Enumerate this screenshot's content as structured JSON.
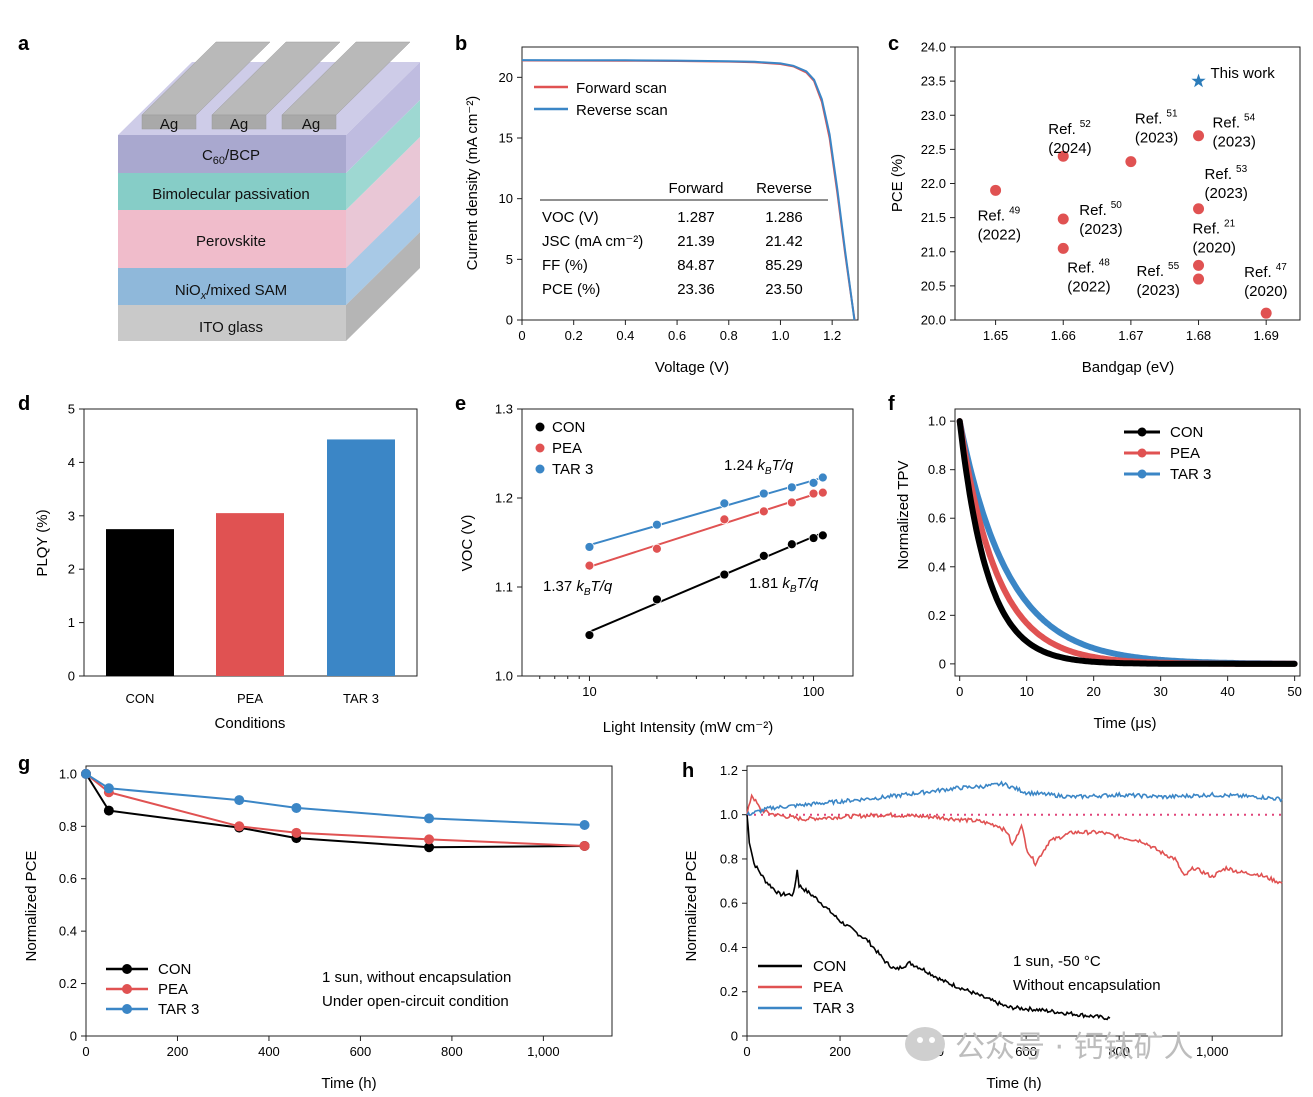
{
  "panels": {
    "a": "a",
    "b": "b",
    "c": "c",
    "d": "d",
    "e": "e",
    "f": "f",
    "g": "g",
    "h": "h"
  },
  "colors": {
    "CON": "#000000",
    "PEA": "#e05252",
    "TAR3": "#3b86c6",
    "star": "#2b7bb9"
  },
  "panel_a": {
    "layers": [
      {
        "label": "Ag"
      },
      {
        "label": "C60/BCP"
      },
      {
        "label": "Bimolecular passivation"
      },
      {
        "label": "Perovskite"
      },
      {
        "label": "NiOx/mixed SAM"
      },
      {
        "label": "ITO glass"
      }
    ],
    "ag_labels": [
      "Ag",
      "Ag",
      "Ag"
    ]
  },
  "watermark": {
    "text": "公众号 · 钙钛矿人"
  },
  "chart_data": [
    {
      "panel": "b",
      "type": "line",
      "xlabel": "Voltage (V)",
      "ylabel": "Current density (mA cm⁻²)",
      "xlim": [
        0,
        1.3
      ],
      "ylim": [
        0,
        22.5
      ],
      "xticks": [
        "0",
        "0.2",
        "0.4",
        "0.6",
        "0.8",
        "1.0",
        "1.2"
      ],
      "yticks": [
        "0",
        "5",
        "10",
        "15",
        "20"
      ],
      "series": [
        {
          "name": "Forward scan",
          "x": [
            0,
            0.2,
            0.4,
            0.6,
            0.8,
            0.9,
            1.0,
            1.05,
            1.1,
            1.13,
            1.16,
            1.19,
            1.22,
            1.25,
            1.27,
            1.287
          ],
          "y": [
            21.39,
            21.38,
            21.37,
            21.35,
            21.3,
            21.25,
            21.1,
            20.9,
            20.4,
            19.7,
            18.0,
            15.0,
            10.5,
            5.5,
            2.5,
            0
          ]
        },
        {
          "name": "Reverse scan",
          "x": [
            0,
            0.2,
            0.4,
            0.6,
            0.8,
            0.9,
            1.0,
            1.05,
            1.1,
            1.13,
            1.16,
            1.19,
            1.22,
            1.25,
            1.27,
            1.286
          ],
          "y": [
            21.42,
            21.41,
            21.4,
            21.38,
            21.33,
            21.28,
            21.15,
            20.95,
            20.5,
            19.8,
            18.2,
            15.3,
            10.8,
            5.7,
            2.6,
            0
          ]
        }
      ],
      "table": {
        "headers": [
          "",
          "Forward",
          "Reverse"
        ],
        "rows": [
          [
            "VOC (V)",
            "1.287",
            "1.286"
          ],
          [
            "JSC (mA cm⁻²)",
            "21.39",
            "21.42"
          ],
          [
            "FF (%)",
            "84.87",
            "85.29"
          ],
          [
            "PCE (%)",
            "23.36",
            "23.50"
          ]
        ]
      }
    },
    {
      "panel": "c",
      "type": "scatter",
      "xlabel": "Bandgap (eV)",
      "ylabel": "PCE (%)",
      "xlim": [
        1.644,
        1.695
      ],
      "ylim": [
        20.0,
        24.0
      ],
      "xticks": [
        "1.65",
        "1.66",
        "1.67",
        "1.68",
        "1.69"
      ],
      "yticks": [
        "20.0",
        "20.5",
        "21.0",
        "21.5",
        "22.0",
        "22.5",
        "23.0",
        "23.5",
        "24.0"
      ],
      "points": [
        {
          "x": 1.65,
          "y": 21.9,
          "ref": "49",
          "year": "(2022)"
        },
        {
          "x": 1.66,
          "y": 22.4,
          "ref": "52",
          "year": "(2024)"
        },
        {
          "x": 1.66,
          "y": 21.48,
          "ref": "50",
          "year": "(2023)"
        },
        {
          "x": 1.66,
          "y": 21.05,
          "ref": "48",
          "year": "(2022)"
        },
        {
          "x": 1.67,
          "y": 22.32,
          "ref": "51",
          "year": "(2023)"
        },
        {
          "x": 1.68,
          "y": 22.7,
          "ref": "54",
          "year": "(2023)"
        },
        {
          "x": 1.68,
          "y": 21.63,
          "ref": "53",
          "year": "(2023)"
        },
        {
          "x": 1.68,
          "y": 20.8,
          "ref": "21",
          "year": "(2020)"
        },
        {
          "x": 1.68,
          "y": 20.6,
          "ref": "55",
          "year": "(2023)"
        },
        {
          "x": 1.69,
          "y": 20.1,
          "ref": "47",
          "year": "(2020)"
        }
      ],
      "this_work": {
        "x": 1.68,
        "y": 23.5,
        "label": "This work"
      }
    },
    {
      "panel": "d",
      "type": "bar",
      "xlabel": "Conditions",
      "ylabel": "PLQY (%)",
      "ylim": [
        0,
        5
      ],
      "yticks": [
        "0",
        "1",
        "2",
        "3",
        "4",
        "5"
      ],
      "categories": [
        "CON",
        "PEA",
        "TAR 3"
      ],
      "values": [
        2.75,
        3.05,
        4.43
      ]
    },
    {
      "panel": "e",
      "type": "scatter",
      "xlabel": "Light Intensity (mW cm⁻²)",
      "ylabel": "VOC (V)",
      "xscale": "log",
      "xlim": [
        5,
        150
      ],
      "ylim": [
        1.0,
        1.3
      ],
      "xticks": [
        "10",
        "100"
      ],
      "yticks": [
        "1.0",
        "1.1",
        "1.2",
        "1.3"
      ],
      "series": [
        {
          "name": "CON",
          "x": [
            10,
            20,
            40,
            60,
            80,
            100,
            110
          ],
          "y": [
            1.046,
            1.086,
            1.114,
            1.135,
            1.148,
            1.155,
            1.158
          ]
        },
        {
          "name": "PEA",
          "x": [
            10,
            20,
            40,
            60,
            80,
            100,
            110
          ],
          "y": [
            1.124,
            1.143,
            1.176,
            1.185,
            1.195,
            1.205,
            1.206
          ]
        },
        {
          "name": "TAR 3",
          "x": [
            10,
            20,
            40,
            60,
            80,
            100,
            110
          ],
          "y": [
            1.145,
            1.17,
            1.194,
            1.205,
            1.212,
            1.217,
            1.223
          ]
        }
      ],
      "annotations": [
        "1.24 kBT/q",
        "1.37 kBT/q",
        "1.81 kBT/q"
      ]
    },
    {
      "panel": "f",
      "type": "line",
      "xlabel": "Time (μs)",
      "ylabel": "Normalized TPV",
      "xlim": [
        0,
        50
      ],
      "ylim": [
        -0.05,
        1.05
      ],
      "xticks": [
        "0",
        "10",
        "20",
        "30",
        "40",
        "50"
      ],
      "yticks": [
        "0",
        "0.2",
        "0.4",
        "0.6",
        "0.8",
        "1.0"
      ],
      "series": [
        {
          "name": "CON",
          "tau_us": 4.2
        },
        {
          "name": "PEA",
          "tau_us": 5.6
        },
        {
          "name": "TAR 3",
          "tau_us": 7.3
        }
      ]
    },
    {
      "panel": "g",
      "type": "line",
      "xlabel": "Time (h)",
      "ylabel": "Normalized PCE",
      "xlim": [
        0,
        1150
      ],
      "ylim": [
        0,
        1.0
      ],
      "xticks": [
        "0",
        "200",
        "400",
        "600",
        "800",
        "1,000"
      ],
      "yticks": [
        "0",
        "0.2",
        "0.4",
        "0.6",
        "0.8",
        "1.0"
      ],
      "series": [
        {
          "name": "CON",
          "x": [
            0,
            50,
            335,
            460,
            750,
            1090
          ],
          "y": [
            1.0,
            0.86,
            0.795,
            0.755,
            0.72,
            0.725
          ]
        },
        {
          "name": "PEA",
          "x": [
            0,
            50,
            335,
            460,
            750,
            1090
          ],
          "y": [
            1.0,
            0.93,
            0.8,
            0.775,
            0.75,
            0.725
          ]
        },
        {
          "name": "TAR 3",
          "x": [
            0,
            50,
            335,
            460,
            750,
            1090
          ],
          "y": [
            1.0,
            0.945,
            0.9,
            0.87,
            0.83,
            0.805
          ]
        }
      ],
      "notes": [
        "1 sun, without encapsulation",
        "Under open-circuit condition"
      ]
    },
    {
      "panel": "h",
      "type": "line",
      "xlabel": "Time (h)",
      "ylabel": "Normalized PCE",
      "xlim": [
        0,
        1150
      ],
      "ylim": [
        0,
        1.2
      ],
      "xticks": [
        "0",
        "200",
        "400",
        "600",
        "800",
        "1,000"
      ],
      "yticks": [
        "0",
        "0.2",
        "0.4",
        "0.6",
        "0.8",
        "1.0",
        "1.2"
      ],
      "series": [
        {
          "name": "CON",
          "x": [
            0,
            5,
            15,
            40,
            70,
            100,
            108,
            112,
            150,
            200,
            260,
            300,
            320,
            350,
            380,
            420,
            480,
            560,
            620,
            700,
            780
          ],
          "y": [
            1.0,
            0.88,
            0.78,
            0.7,
            0.64,
            0.64,
            0.75,
            0.68,
            0.62,
            0.52,
            0.43,
            0.33,
            0.3,
            0.33,
            0.3,
            0.25,
            0.2,
            0.13,
            0.12,
            0.1,
            0.08
          ]
        },
        {
          "name": "PEA",
          "x": [
            0,
            10,
            30,
            60,
            120,
            200,
            300,
            400,
            500,
            540,
            560,
            570,
            580,
            590,
            600,
            620,
            650,
            700,
            760,
            800,
            850,
            890,
            920,
            940,
            960,
            1000,
            1030,
            1060,
            1100,
            1150
          ],
          "y": [
            1.0,
            1.09,
            1.02,
            1.0,
            0.98,
            0.99,
            1.0,
            0.99,
            0.97,
            0.95,
            0.92,
            0.86,
            0.9,
            0.96,
            0.85,
            0.78,
            0.88,
            0.92,
            0.92,
            0.9,
            0.88,
            0.83,
            0.8,
            0.72,
            0.76,
            0.72,
            0.76,
            0.74,
            0.73,
            0.69
          ]
        },
        {
          "name": "TAR 3",
          "x": [
            0,
            50,
            150,
            300,
            450,
            520,
            550,
            600,
            700,
            800,
            900,
            1000,
            1100,
            1150
          ],
          "y": [
            1.0,
            1.03,
            1.05,
            1.08,
            1.12,
            1.13,
            1.14,
            1.1,
            1.08,
            1.09,
            1.08,
            1.09,
            1.08,
            1.07
          ]
        }
      ],
      "reference_line": 1.0,
      "notes": [
        "1 sun, -50 °C",
        "Without encapsulation"
      ]
    }
  ]
}
